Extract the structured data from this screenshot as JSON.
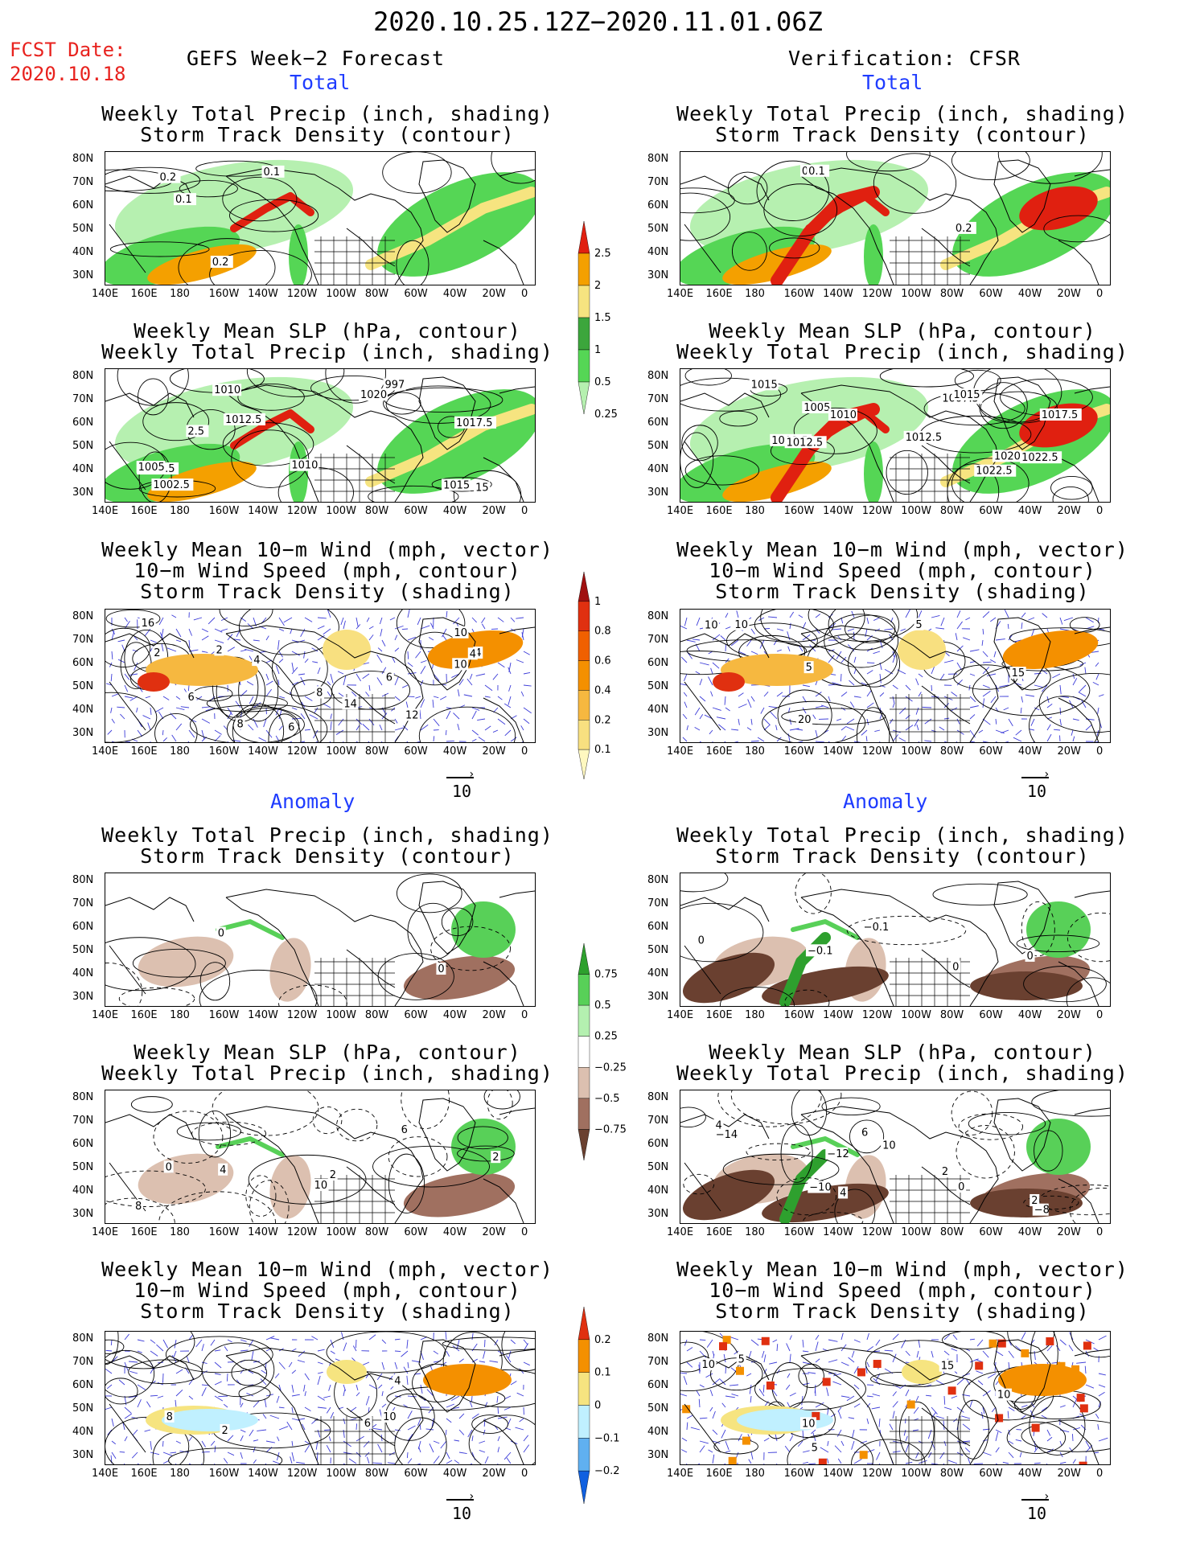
{
  "header": {
    "period": "2020.10.25.12Z−2020.11.01.06Z",
    "fcst_label": "FCST Date:",
    "fcst_date": "2020.10.18",
    "forecast_title": "GEFS Week−2 Forecast",
    "verification_title": "Verification: CFSR"
  },
  "sections": {
    "total": "Total",
    "anomaly": "Anomaly"
  },
  "panel_titles": {
    "precip_storm": [
      "Weekly Total Precip (inch, shading)",
      "Storm Track Density (contour)"
    ],
    "slp_precip": [
      "Weekly Mean SLP (hPa, contour)",
      "Weekly Total Precip (inch, shading)"
    ],
    "wind": [
      "Weekly Mean 10−m Wind (mph, vector)",
      "10−m Wind Speed (mph, contour)",
      "Storm Track Density (shading)"
    ]
  },
  "axes": {
    "lon_ticks": [
      "140E",
      "160E",
      "180",
      "160W",
      "140W",
      "120W",
      "100W",
      "80W",
      "60W",
      "40W",
      "20W",
      "0"
    ],
    "lat_ticks": [
      "80N",
      "70N",
      "60N",
      "50N",
      "40N",
      "30N"
    ],
    "vector_ref": "10"
  },
  "colorbars": {
    "total_precip": {
      "labels": [
        "2.5",
        "2",
        "1.5",
        "1",
        "0.5",
        "0.25"
      ],
      "colors": [
        "#e02010",
        "#f4a000",
        "#f6e480",
        "#3ca63c",
        "#55d655",
        "#b6f0b0"
      ]
    },
    "total_storm": {
      "labels": [
        "1",
        "0.8",
        "0.6",
        "0.4",
        "0.2",
        "0.1"
      ],
      "colors": [
        "#a01010",
        "#e03010",
        "#f06000",
        "#f49000",
        "#f6b840",
        "#f8e080",
        "#fff8c0"
      ]
    },
    "anom_precip": {
      "labels": [
        "0.75",
        "0.5",
        "0.25",
        "−0.25",
        "−0.5",
        "−0.75"
      ],
      "colors": [
        "#2ea02e",
        "#58d058",
        "#b4f0b0",
        "#ffffff",
        "#dcc0b0",
        "#a07060",
        "#6a4030"
      ]
    },
    "anom_storm": {
      "labels": [
        "0.2",
        "0.1",
        "0",
        "−0.1",
        "−0.2"
      ],
      "colors": [
        "#e03010",
        "#f49000",
        "#f6e480",
        "#c0f0ff",
        "#60b0f0",
        "#1060e0"
      ]
    }
  },
  "panels": {
    "fc_tot_precip": {
      "contour_labels": [
        "0.2",
        "0.1",
        "0.1",
        "0.2"
      ]
    },
    "fc_tot_slp": {
      "contour_labels": [
        "1010",
        "1007.5",
        "1005",
        "997",
        "1012.5",
        "1015",
        "1017.5",
        "1002.5",
        "1010",
        "1020",
        "15",
        "2.5"
      ]
    },
    "fc_tot_wind": {
      "contour_labels": [
        "2",
        "4",
        "6",
        "8",
        "10",
        "12",
        "14",
        "16",
        "6",
        "8",
        "4",
        "10",
        "6",
        "4",
        "2"
      ]
    },
    "vf_tot_precip": {
      "contour_labels": [
        "0.1",
        "0.1",
        "0.2"
      ]
    },
    "vf_tot_slp": {
      "contour_labels": [
        "1005",
        "1002.5",
        "1010",
        "1012.5",
        "1007.5",
        "1015",
        "1012.5",
        "1015",
        "1017.5",
        "1020",
        "1022.5",
        "1022.5"
      ]
    },
    "vf_tot_wind": {
      "contour_labels": [
        "5",
        "10",
        "10",
        "15",
        "20",
        "5"
      ]
    },
    "fc_an_precip": {
      "contour_labels": [
        "0",
        "0"
      ]
    },
    "fc_an_slp": {
      "contour_labels": [
        "4",
        "6",
        "8",
        "10",
        "0",
        "2",
        "2"
      ]
    },
    "fc_an_wind": {
      "contour_labels": [
        "2",
        "6",
        "10",
        "8",
        "4"
      ]
    },
    "vf_an_precip": {
      "contour_labels": [
        "−0.1",
        "0",
        "0",
        "−0.1",
        "0"
      ]
    },
    "vf_an_slp": {
      "contour_labels": [
        "−10",
        "−8",
        "−12",
        "−14",
        "10",
        "4",
        "2",
        "4",
        "2",
        "6",
        "0"
      ]
    },
    "vf_an_wind": {
      "contour_labels": [
        "5",
        "10",
        "10",
        "15",
        "5",
        "10"
      ]
    }
  }
}
